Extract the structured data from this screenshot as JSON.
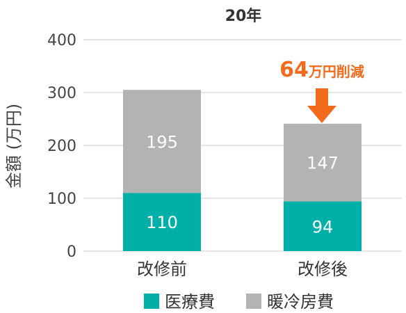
{
  "chart_data": {
    "type": "bar",
    "stacked": true,
    "title": "20年",
    "xlabel": "",
    "ylabel": "金額 (万円)",
    "ylim": [
      0,
      400
    ],
    "yticks": [
      0,
      100,
      200,
      300,
      400
    ],
    "grid": true,
    "categories": [
      "改修前",
      "改修後"
    ],
    "series": [
      {
        "name": "医療費",
        "values": [
          110,
          94
        ],
        "color": "#00b0a8"
      },
      {
        "name": "暖冷房費",
        "values": [
          195,
          147
        ],
        "color": "#b3b3b3"
      }
    ],
    "annotation": {
      "category": "改修後",
      "value": "64",
      "text": "万円削減",
      "color": "#f26a1b"
    },
    "legend_position": "bottom"
  }
}
